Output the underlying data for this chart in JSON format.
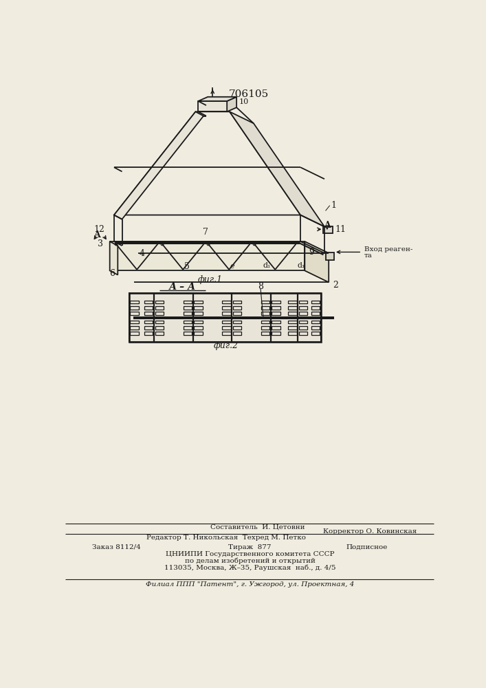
{
  "title": "706105",
  "fig1_label": "фиг.1",
  "fig2_label": "фиг.2",
  "section_label": "А – А",
  "bg_color": "#f0ece0",
  "line_color": "#1a1a1a",
  "text_color": "#1a1a1a",
  "title_fontsize": 11,
  "label_fontsize": 9,
  "small_fontsize": 7.5
}
